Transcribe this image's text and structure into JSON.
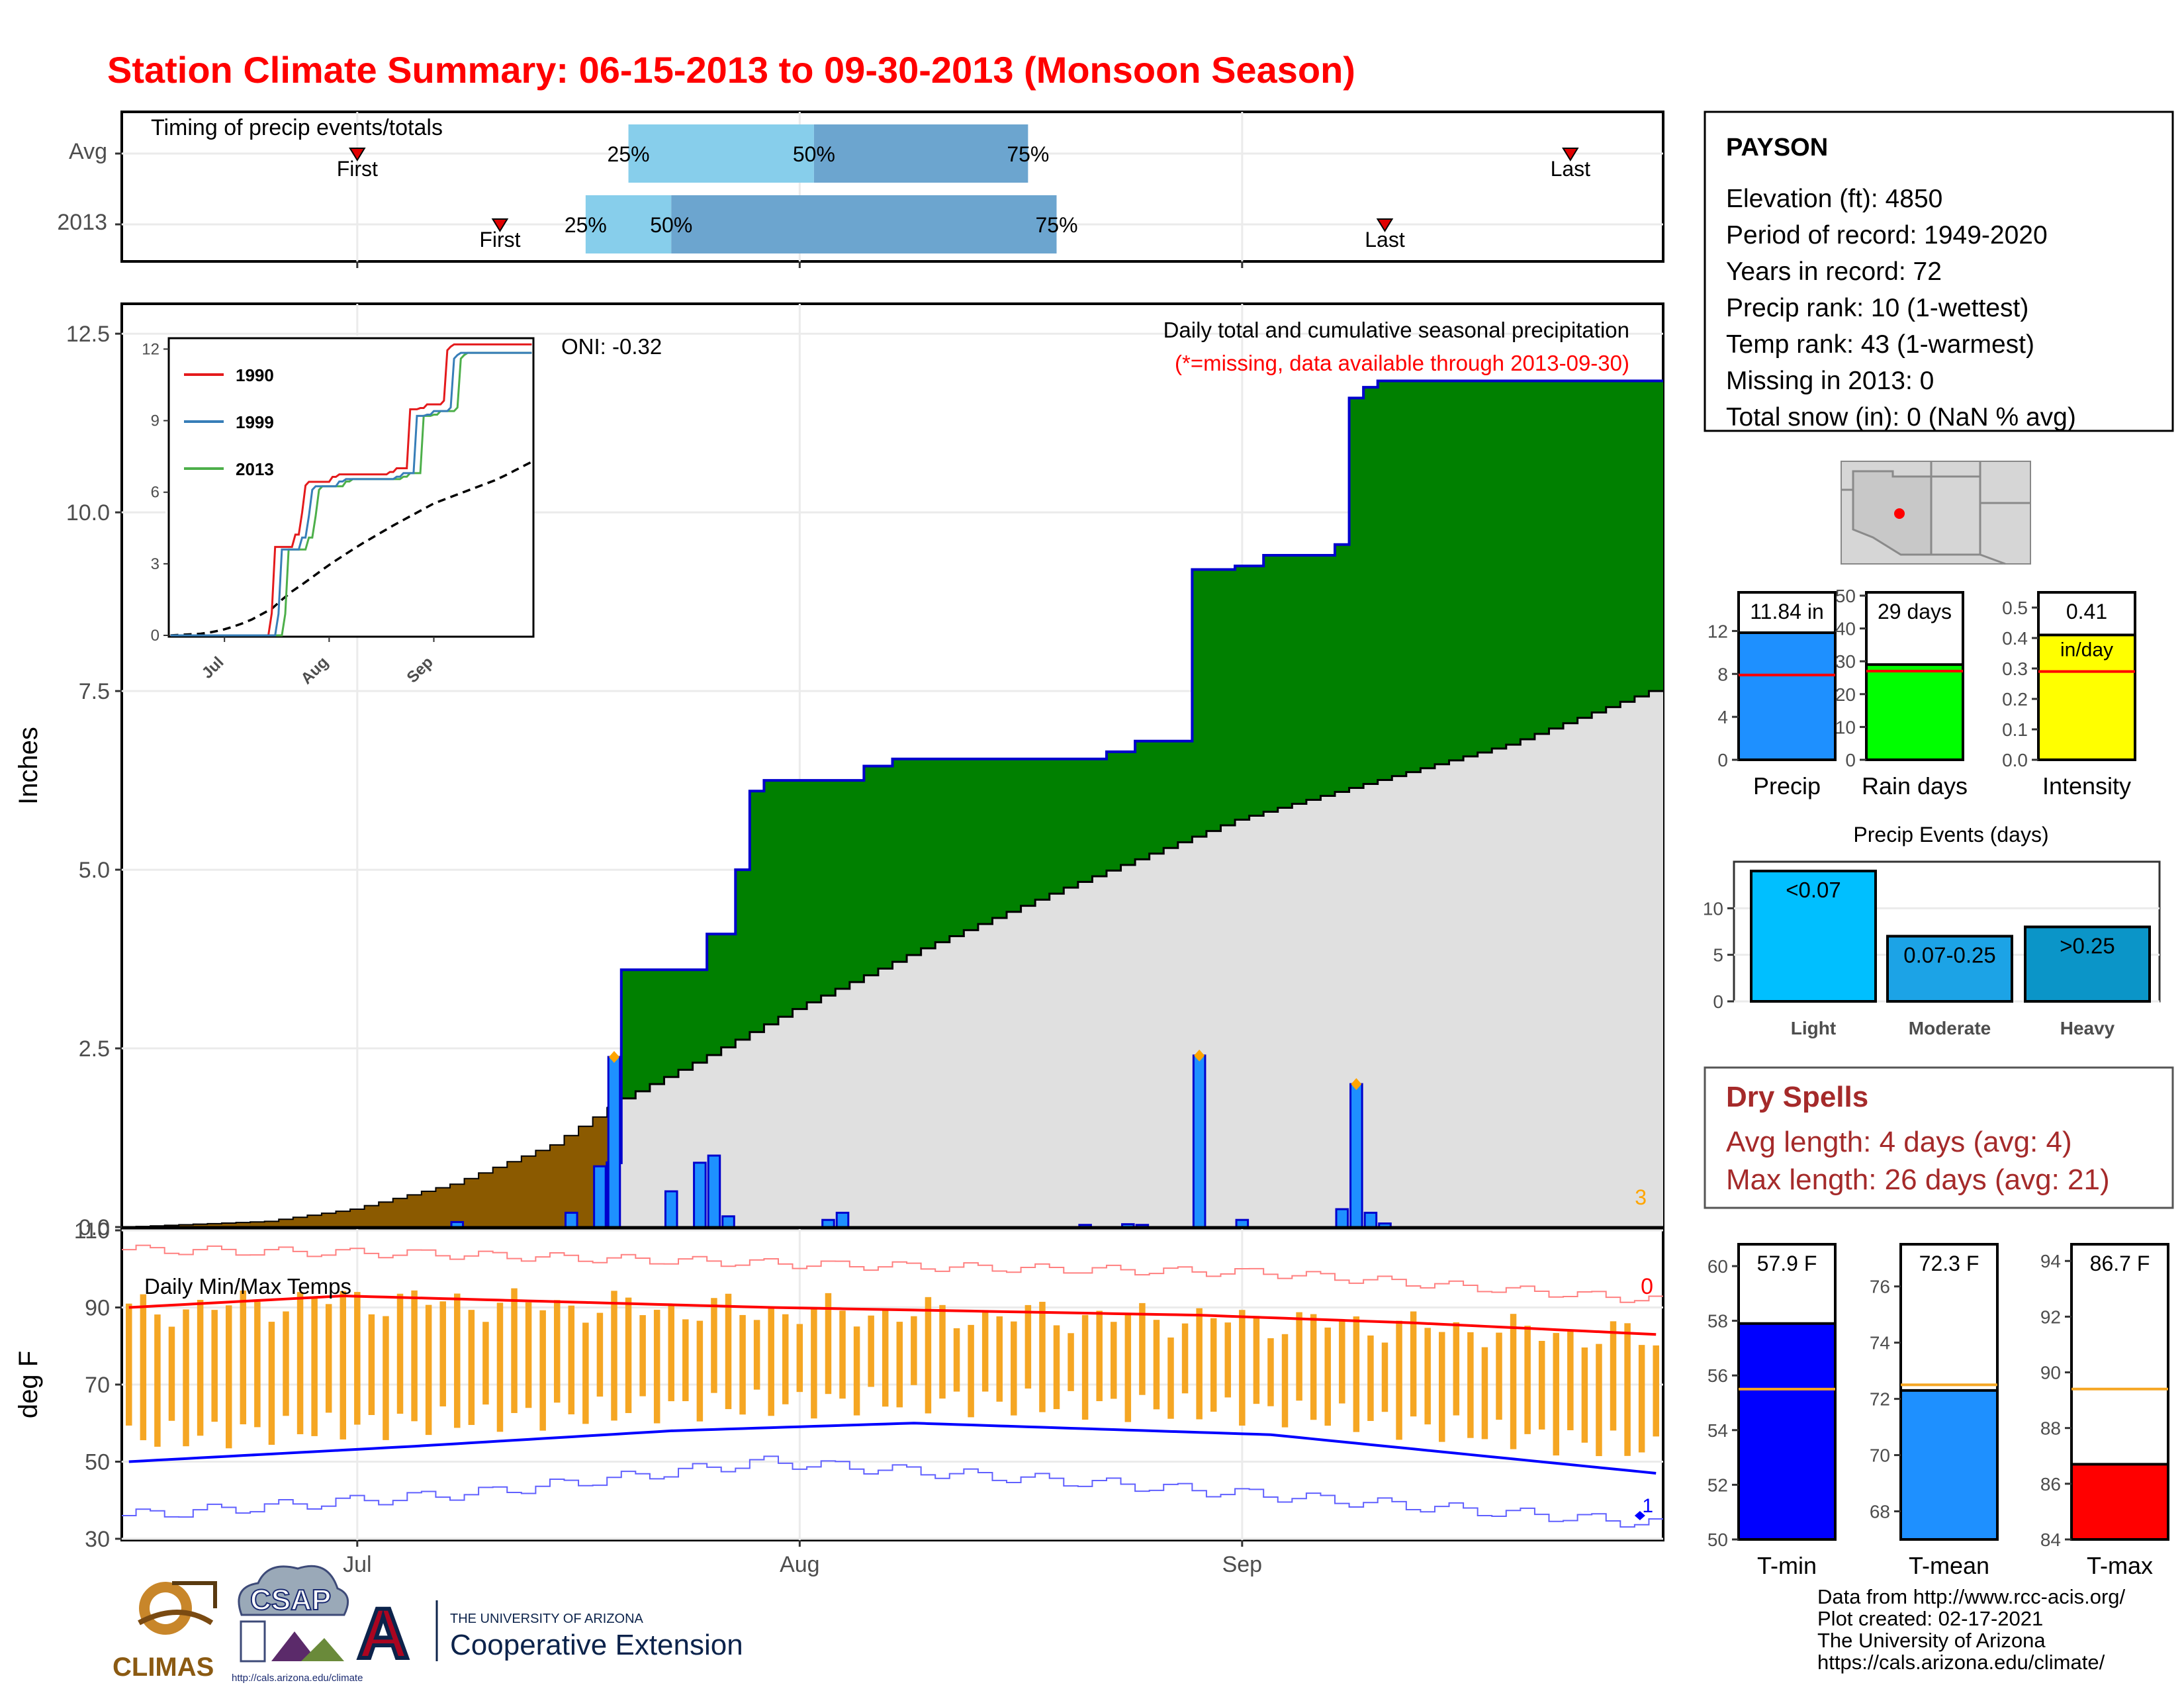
{
  "title": "Station Climate Summary: 06-15-2013 to 09-30-2013 (Monsoon Season)",
  "colors": {
    "title": "#ff0000",
    "precip_fill": "#008000",
    "precip_line": "#0000cd",
    "avg_fill": "#e0e0e0",
    "early_fill": "#8b5a00",
    "bar_blue": "#1e90ff",
    "tmax": "#ff0000",
    "tmin": "#0000ff",
    "daily_bar": "#f5a623",
    "light_blue": "#87ceeb",
    "mid_blue": "#6ca5cf",
    "dry_spell": "#a52a2a"
  },
  "timing": {
    "label": "Timing of precip events/totals",
    "rows": [
      "Avg",
      "2013"
    ],
    "first_label": "First",
    "last_label": "Last",
    "pct_labels": [
      "25%",
      "50%",
      "75%"
    ],
    "avg": {
      "first": "2013-07-01",
      "p25": "2013-07-20",
      "p50": "2013-08-02",
      "p75": "2013-08-17",
      "last": "2013-09-24"
    },
    "y2013": {
      "first": "2013-07-11",
      "p25": "2013-07-17",
      "p50": "2013-07-23",
      "p75": "2013-08-19",
      "last": "2013-09-11"
    }
  },
  "precip_panel": {
    "ylabel": "Inches",
    "title": "Daily total and cumulative seasonal precipitation",
    "subtitle": "(*=missing, data available through 2013-09-30)",
    "oni": "ONI: -0.32",
    "corner_note": "3",
    "yticks": [
      "0.0",
      "2.5",
      "5.0",
      "7.5",
      "10.0",
      "12.5"
    ]
  },
  "inset": {
    "yticks": [
      "0",
      "3",
      "6",
      "9",
      "12"
    ],
    "xticks": [
      "Jul",
      "Aug",
      "Sep"
    ],
    "legend": [
      "1990",
      "1999",
      "2013"
    ],
    "colors": [
      "#e41a1c",
      "#377eb8",
      "#4daf4a"
    ]
  },
  "temp_panel": {
    "ylabel": "deg F",
    "label": "Daily Min/Max Temps",
    "corner_top": "0",
    "corner_bottom": "1",
    "yticks": [
      "30",
      "50",
      "70",
      "90",
      "110"
    ],
    "xticks": [
      "Jul",
      "Aug",
      "Sep"
    ]
  },
  "station": {
    "name": "PAYSON",
    "lines": [
      "Elevation (ft): 4850",
      "Period of record: 1949-2020",
      "Years in record: 72",
      "Precip rank: 10 (1-wettest)",
      "Temp rank: 43 (1-warmest)",
      "Missing in 2013: 0",
      "Total snow (in): 0 (NaN % avg)"
    ]
  },
  "gauges_precip": [
    {
      "label": "Precip",
      "value_text": "11.84 in",
      "value": 11.84,
      "avg": 7.9,
      "max": 15.6,
      "yticks": [
        "0",
        "4",
        "8",
        "12"
      ],
      "tickvals": [
        0,
        4,
        8,
        12
      ],
      "color": "#1e90ff"
    },
    {
      "label": "Rain days",
      "value_text": "29 days",
      "value": 29,
      "avg": 27,
      "max": 51,
      "yticks": [
        "0",
        "10",
        "20",
        "30",
        "40",
        "50"
      ],
      "tickvals": [
        0,
        10,
        20,
        30,
        40,
        50
      ],
      "color": "#00ff00"
    },
    {
      "label": "Intensity",
      "value_text": "0.41",
      "value": 0.41,
      "avg": 0.29,
      "max": 0.55,
      "unit": "in/day",
      "yticks": [
        "0.0",
        "0.1",
        "0.2",
        "0.3",
        "0.4",
        "0.5"
      ],
      "tickvals": [
        0,
        0.1,
        0.2,
        0.3,
        0.4,
        0.5
      ],
      "color": "#ffff00"
    }
  ],
  "precip_events": {
    "title": "Precip Events (days)",
    "yticks": [
      "0",
      "5",
      "10"
    ],
    "bars": [
      {
        "label": "Light",
        "range": "<0.07",
        "value": 14,
        "color": "#00bfff"
      },
      {
        "label": "Moderate",
        "range": "0.07-0.25",
        "value": 7,
        "color": "#1ca3e6"
      },
      {
        "label": "Heavy",
        "range": ">0.25",
        "value": 8,
        "color": "#0b95c8"
      }
    ]
  },
  "dry_spells": {
    "title": "Dry Spells",
    "avg": "Avg length: 4 days (avg: 4)",
    "max": "Max length: 26 days (avg: 21)"
  },
  "gauges_temp": [
    {
      "label": "T-min",
      "value_text": "57.9 F",
      "value": 57.9,
      "avg": 55.5,
      "min": 50,
      "max": 60.8,
      "yticks": [
        "50",
        "52",
        "54",
        "56",
        "58",
        "60"
      ],
      "tickvals": [
        50,
        52,
        54,
        56,
        58,
        60
      ],
      "color": "#0000ff"
    },
    {
      "label": "T-mean",
      "value_text": "72.3 F",
      "value": 72.3,
      "avg": 72.5,
      "min": 67,
      "max": 77.5,
      "yticks": [
        "68",
        "70",
        "72",
        "74",
        "76"
      ],
      "tickvals": [
        68,
        70,
        72,
        74,
        76
      ],
      "color": "#1e90ff"
    },
    {
      "label": "T-max",
      "value_text": "86.7 F",
      "value": 86.7,
      "avg": 89.4,
      "min": 84,
      "max": 94.6,
      "yticks": [
        "84",
        "86",
        "88",
        "90",
        "92",
        "94"
      ],
      "tickvals": [
        84,
        86,
        88,
        90,
        92,
        94
      ],
      "color": "#ff0000"
    }
  ],
  "footer": {
    "lines": [
      "Data from http://www.rcc-acis.org/",
      "Plot created: 02-17-2021",
      "The University of Arizona",
      "https://cals.arizona.edu/climate/"
    ],
    "climas": "CLIMAS",
    "csap": "CSAP",
    "csap_url": "http://cals.arizona.edu/climate",
    "ua_small": "THE UNIVERSITY OF ARIZONA",
    "ua_big": "Cooperative Extension",
    "ua_letter": "A"
  },
  "chart_data": [
    {
      "type": "area",
      "title": "Daily total and cumulative seasonal precipitation",
      "ylabel": "Inches",
      "x_range": [
        "2013-06-15",
        "2013-09-30"
      ],
      "ylim": [
        0,
        12.9
      ],
      "cumulative_2013_steps": [
        [
          "2013-07-18",
          0.0
        ],
        [
          "2013-07-19",
          0.9
        ],
        [
          "2013-07-20",
          3.6
        ],
        [
          "2013-07-25",
          3.6
        ],
        [
          "2013-07-26",
          4.1
        ],
        [
          "2013-07-27",
          4.1
        ],
        [
          "2013-07-28",
          5.0
        ],
        [
          "2013-07-29",
          6.1
        ],
        [
          "2013-07-30",
          6.25
        ],
        [
          "2013-08-06",
          6.45
        ],
        [
          "2013-08-08",
          6.55
        ],
        [
          "2013-08-18",
          6.55
        ],
        [
          "2013-08-23",
          6.65
        ],
        [
          "2013-08-25",
          6.8
        ],
        [
          "2013-08-28",
          6.8
        ],
        [
          "2013-08-29",
          9.2
        ],
        [
          "2013-09-01",
          9.25
        ],
        [
          "2013-09-03",
          9.4
        ],
        [
          "2013-09-08",
          9.55
        ],
        [
          "2013-09-09",
          11.6
        ],
        [
          "2013-09-10",
          11.75
        ],
        [
          "2013-09-11",
          11.84
        ],
        [
          "2013-09-30",
          11.84
        ]
      ],
      "avg_cumulative": [
        [
          "2013-06-15",
          0.0
        ],
        [
          "2013-06-25",
          0.08
        ],
        [
          "2013-07-01",
          0.25
        ],
        [
          "2013-07-08",
          0.6
        ],
        [
          "2013-07-15",
          1.15
        ],
        [
          "2013-07-20",
          1.8
        ],
        [
          "2013-07-25",
          2.3
        ],
        [
          "2013-08-01",
          3.05
        ],
        [
          "2013-08-10",
          3.9
        ],
        [
          "2013-08-20",
          4.75
        ],
        [
          "2013-09-01",
          5.7
        ],
        [
          "2013-09-10",
          6.2
        ],
        [
          "2013-09-20",
          6.75
        ],
        [
          "2013-09-30",
          7.5
        ]
      ],
      "daily_precip": [
        [
          "2013-07-08",
          0.07
        ],
        [
          "2013-07-16",
          0.2
        ],
        [
          "2013-07-18",
          0.85
        ],
        [
          "2013-07-19",
          2.38
        ],
        [
          "2013-07-23",
          0.5
        ],
        [
          "2013-07-25",
          0.9
        ],
        [
          "2013-07-26",
          1.0
        ],
        [
          "2013-07-27",
          0.15
        ],
        [
          "2013-08-03",
          0.1
        ],
        [
          "2013-08-04",
          0.2
        ],
        [
          "2013-08-21",
          0.03
        ],
        [
          "2013-08-24",
          0.04
        ],
        [
          "2013-08-25",
          0.03
        ],
        [
          "2013-08-29",
          2.4
        ],
        [
          "2013-09-01",
          0.1
        ],
        [
          "2013-09-08",
          0.25
        ],
        [
          "2013-09-09",
          2.0
        ],
        [
          "2013-09-10",
          0.2
        ],
        [
          "2013-09-11",
          0.05
        ]
      ]
    },
    {
      "type": "line",
      "title": "Daily Min/Max Temps",
      "ylabel": "deg F",
      "ylim": [
        30,
        110
      ],
      "series": [
        {
          "name": "avg_max",
          "points": [
            [
              0,
              90
            ],
            [
              15,
              93
            ],
            [
              45,
              90
            ],
            [
              75,
              88
            ],
            [
              90,
              86
            ],
            [
              107,
              83
            ]
          ]
        },
        {
          "name": "avg_min",
          "points": [
            [
              0,
              50
            ],
            [
              20,
              54
            ],
            [
              38,
              58
            ],
            [
              55,
              60
            ],
            [
              80,
              57
            ],
            [
              107,
              47
            ]
          ]
        },
        {
          "name": "record_max",
          "points": [
            [
              0,
              105
            ],
            [
              20,
              104
            ],
            [
              50,
              101
            ],
            [
              80,
              99
            ],
            [
              107,
              92
            ]
          ]
        },
        {
          "name": "record_min",
          "points": [
            [
              0,
              36
            ],
            [
              25,
              42
            ],
            [
              45,
              50
            ],
            [
              70,
              44
            ],
            [
              107,
              34
            ]
          ]
        }
      ]
    }
  ]
}
